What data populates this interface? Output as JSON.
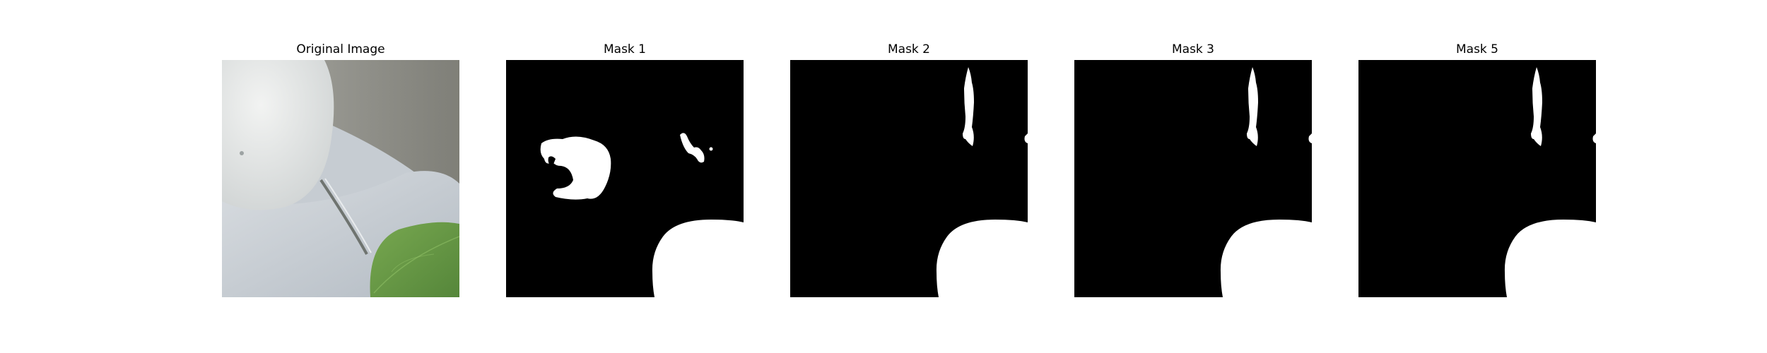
{
  "panels": [
    {
      "title": "Original Image",
      "kind": "photo"
    },
    {
      "title": "Mask 1",
      "kind": "mask-a"
    },
    {
      "title": "Mask 2",
      "kind": "mask-b"
    },
    {
      "title": "Mask 3",
      "kind": "mask-b"
    },
    {
      "title": "Mask 5",
      "kind": "mask-b"
    }
  ],
  "colors": {
    "mask_background": "#000000",
    "mask_foreground": "#ffffff",
    "leaf_green": "#6a9a45",
    "surface_gray": "#c4cbd1",
    "wall_gray": "#8c8c86"
  }
}
